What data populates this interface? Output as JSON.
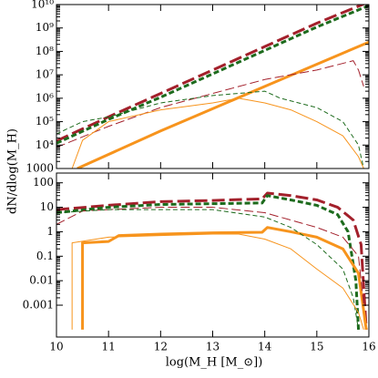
{
  "chart_data": [
    {
      "type": "line",
      "ylog": true,
      "xlim": [
        10,
        16
      ],
      "xticks": [
        10,
        11,
        12,
        13,
        14,
        15,
        16
      ],
      "ylim": [
        1000,
        10000000000
      ],
      "yticks": [
        1000,
        {
          "value": 10000,
          "label": "10⁴"
        },
        {
          "value": 100000,
          "label": "10⁵"
        },
        {
          "value": 1000000,
          "label": "10⁶"
        },
        {
          "value": 10000000,
          "label": "10⁷"
        },
        {
          "value": 100000000,
          "label": "10⁸"
        },
        {
          "value": 1000000000,
          "label": "10⁹"
        },
        {
          "value": 10000000000,
          "label": "10¹⁰"
        }
      ],
      "series": [
        {
          "color": "#a3202b",
          "dash": "long",
          "weight": "thick",
          "x": [
            10,
            11,
            12,
            13,
            14,
            15,
            16
          ],
          "values": [
            15000,
            160000,
            1600000,
            16000000,
            160000000,
            1600000000,
            13000000000
          ]
        },
        {
          "color": "#1d6b1d",
          "dash": "short",
          "weight": "thick",
          "x": [
            10,
            11,
            12,
            13,
            14,
            15,
            16
          ],
          "values": [
            12000,
            125000,
            1100000,
            11000000,
            110000000,
            1100000000,
            9000000000
          ]
        },
        {
          "color": "#f7941d",
          "dash": "none",
          "weight": "thick",
          "x": [
            10.4,
            12,
            14,
            16
          ],
          "values": [
            1000,
            40000,
            3200000,
            250000000
          ]
        },
        {
          "color": "#a3202b",
          "dash": "long",
          "weight": "thin",
          "x": [
            10,
            11,
            12,
            13,
            14,
            15,
            15.7,
            15.8,
            15.9
          ],
          "values": [
            8000,
            63000,
            400000,
            1600000,
            6300000,
            16000000,
            40000000,
            16000000,
            3200000
          ]
        },
        {
          "color": "#1d6b1d",
          "dash": "short",
          "weight": "thin",
          "x": [
            10,
            10.5,
            11,
            12,
            13,
            14,
            14.3,
            15,
            15.5,
            15.8,
            15.9
          ],
          "values": [
            30000,
            100000,
            160000,
            630000,
            1300000,
            2000000,
            1000000,
            400000,
            100000,
            10000,
            1000
          ]
        },
        {
          "color": "#f7941d",
          "dash": "none",
          "weight": "thin",
          "x": [
            10.3,
            10.5,
            11,
            12,
            13,
            13.5,
            14,
            14.5,
            15,
            15.5,
            15.8,
            15.9
          ],
          "values": [
            1000,
            16000,
            100000,
            320000,
            630000,
            1000000,
            630000,
            320000,
            100000,
            25000,
            3200,
            1000
          ]
        }
      ]
    },
    {
      "type": "line",
      "ylog": true,
      "xlim": [
        10,
        16
      ],
      "xticks": [
        10,
        11,
        12,
        13,
        14,
        15,
        16
      ],
      "ylim": [
        5e-05,
        250
      ],
      "yticks": [
        0.001,
        0.01,
        0.1,
        1,
        10,
        100
      ],
      "xlabel": "log(M_H [M_⊙])",
      "ylabel": "dN/dlog(M_H)",
      "series": [
        {
          "color": "#a3202b",
          "dash": "long",
          "weight": "thick",
          "x": [
            10,
            11,
            12,
            13,
            13.95,
            14.05,
            14.5,
            15,
            15.4,
            15.7,
            15.85,
            15.95
          ],
          "values": [
            8,
            12,
            17,
            19,
            22,
            38,
            30,
            20,
            10,
            3,
            0.3,
            0.0001
          ]
        },
        {
          "color": "#1d6b1d",
          "dash": "short",
          "weight": "thick",
          "x": [
            10,
            11,
            12,
            13,
            13.95,
            14.05,
            14.5,
            15,
            15.4,
            15.6,
            15.75,
            15.8
          ],
          "values": [
            6,
            10,
            13,
            14,
            15,
            30,
            20,
            12,
            5,
            1,
            0.01,
            0.0001
          ]
        },
        {
          "color": "#f7941d",
          "dash": "none",
          "weight": "thick",
          "x": [
            10.5,
            10.5,
            11,
            11.2,
            12,
            13,
            13.95,
            14.05,
            14.5,
            15,
            15.5,
            15.8,
            15.95
          ],
          "values": [
            0.0001,
            0.35,
            0.4,
            0.7,
            0.8,
            0.9,
            0.95,
            1.5,
            1,
            0.6,
            0.2,
            0.02,
            0.0001
          ]
        },
        {
          "color": "#a3202b",
          "dash": "long",
          "weight": "thin",
          "x": [
            10,
            10.5,
            11,
            12,
            13,
            14,
            14.5,
            15,
            15.5,
            15.8,
            15.9
          ],
          "values": [
            2,
            7,
            8,
            10,
            10,
            6,
            3,
            1.5,
            0.6,
            0.1,
            0.001
          ]
        },
        {
          "color": "#1d6b1d",
          "dash": "short",
          "weight": "thin",
          "x": [
            10,
            11,
            12,
            13,
            14,
            14.5,
            15,
            15.5,
            15.7,
            15.8
          ],
          "values": [
            6,
            8,
            8,
            8,
            4,
            1.5,
            0.3,
            0.03,
            0.002,
            0.0001
          ]
        },
        {
          "color": "#f7941d",
          "dash": "none",
          "weight": "thin",
          "x": [
            10.3,
            10.3,
            11,
            12,
            13,
            13.5,
            14,
            14.5,
            15,
            15.5,
            15.8,
            15.9
          ],
          "values": [
            0.0001,
            0.35,
            0.6,
            0.7,
            0.8,
            0.8,
            0.5,
            0.2,
            0.03,
            0.005,
            0.0005,
            0.0001
          ]
        }
      ]
    }
  ]
}
